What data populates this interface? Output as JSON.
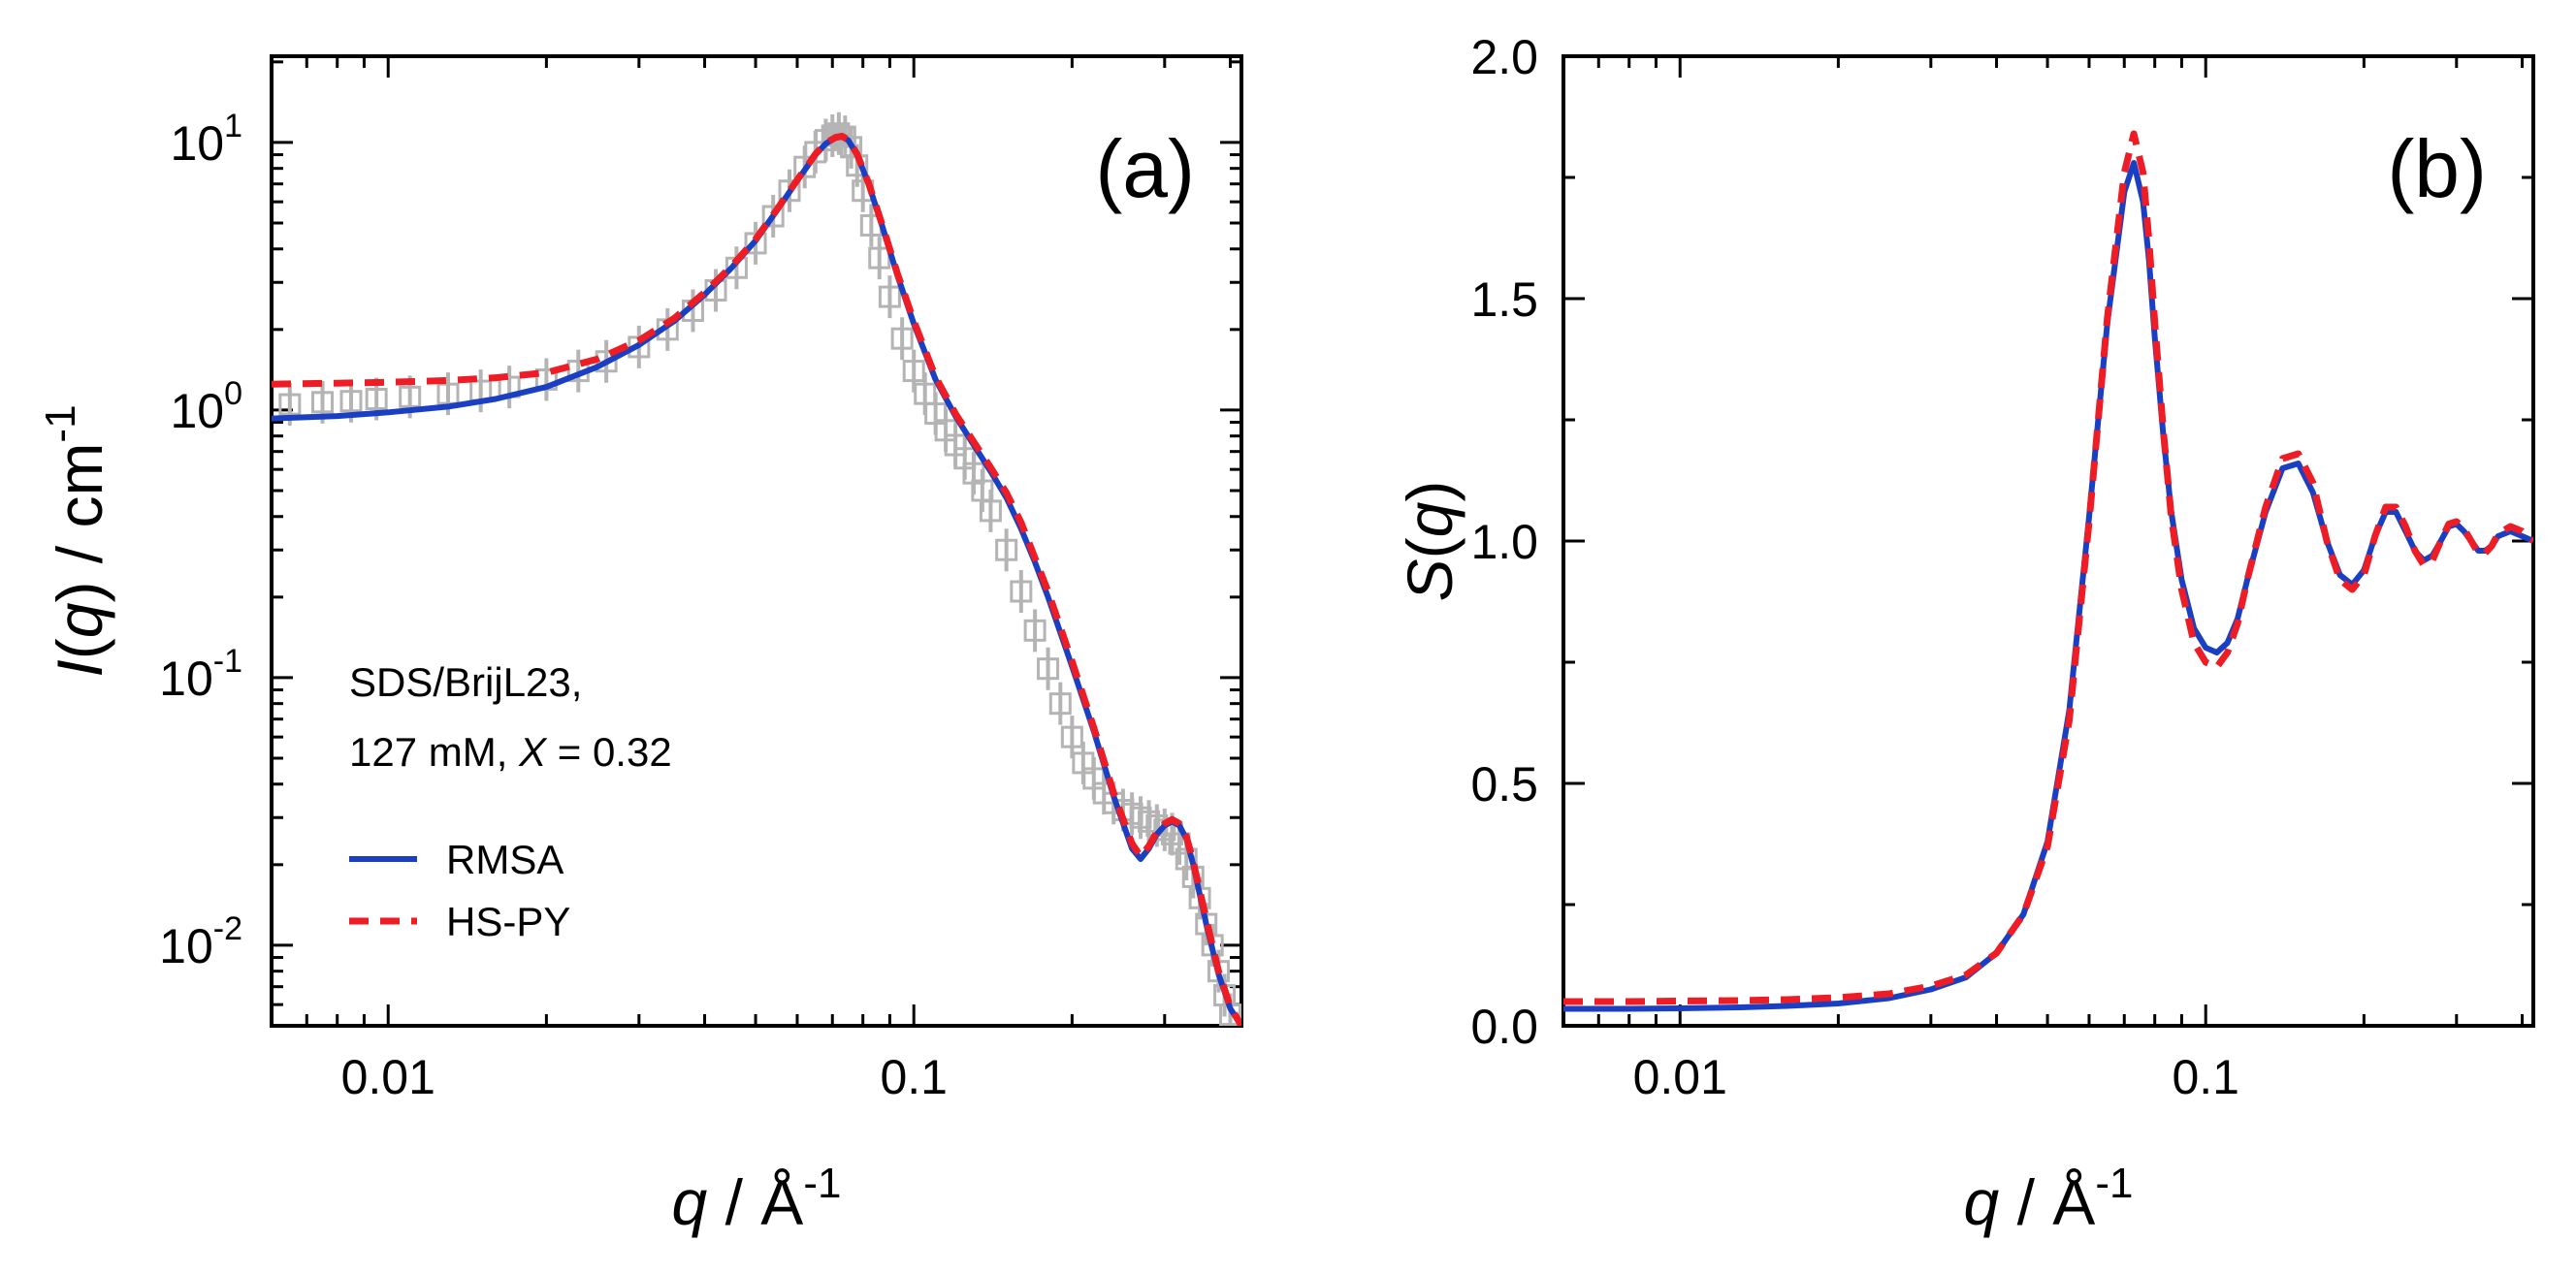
{
  "chart_data": [
    {
      "panel_label": "(a)",
      "type": "line",
      "x_scale": "log",
      "y_scale": "log",
      "xlim": [
        0.006,
        0.42
      ],
      "ylim": [
        0.005,
        21
      ],
      "xlabel": {
        "italic": "q",
        "plain": " / Å",
        "sup": "-1"
      },
      "ylabel": {
        "italic": "I",
        "plain1": "(",
        "italic2": "q",
        "plain2": ") / cm",
        "sup": "-1"
      },
      "x_ticks": [
        {
          "value": 0.01,
          "label": "0.01"
        },
        {
          "value": 0.1,
          "label": "0.1"
        }
      ],
      "y_ticks": [
        {
          "value": 10,
          "base": "10",
          "exp": "1"
        },
        {
          "value": 1,
          "base": "10",
          "exp": "0"
        },
        {
          "value": 0.1,
          "base": "10",
          "exp": "-1"
        },
        {
          "value": 0.01,
          "base": "10",
          "exp": "-2"
        }
      ],
      "annotation": {
        "line1": "SDS/BrijL23,",
        "line2_prefix": "127 mM, ",
        "line2_italic": "X",
        "line2_suffix": " = 0.32"
      },
      "legend": [
        {
          "name": "RMSA",
          "color": "#1a3fc2",
          "style": "solid"
        },
        {
          "name": "HS-PY",
          "color": "#ee1c24",
          "style": "dashed"
        }
      ],
      "series": [
        {
          "name": "Experimental data",
          "color": "#b4b4b4",
          "marker": "open-square",
          "x": [
            0.0065,
            0.0075,
            0.0085,
            0.0095,
            0.011,
            0.013,
            0.015,
            0.017,
            0.02,
            0.023,
            0.026,
            0.03,
            0.034,
            0.038,
            0.042,
            0.046,
            0.05,
            0.054,
            0.058,
            0.062,
            0.065,
            0.068,
            0.07,
            0.072,
            0.074,
            0.076,
            0.078,
            0.08,
            0.083,
            0.086,
            0.09,
            0.095,
            0.1,
            0.105,
            0.11,
            0.115,
            0.12,
            0.125,
            0.13,
            0.135,
            0.14,
            0.15,
            0.16,
            0.17,
            0.18,
            0.19,
            0.2,
            0.21,
            0.22,
            0.23,
            0.24,
            0.25,
            0.26,
            0.27,
            0.28,
            0.29,
            0.3,
            0.31,
            0.32,
            0.33,
            0.34,
            0.35,
            0.36,
            0.37,
            0.38,
            0.39,
            0.4
          ],
          "y": [
            1.05,
            1.07,
            1.08,
            1.1,
            1.12,
            1.15,
            1.18,
            1.22,
            1.3,
            1.4,
            1.52,
            1.72,
            2.0,
            2.35,
            2.8,
            3.4,
            4.2,
            5.3,
            6.6,
            8.1,
            9.2,
            10.2,
            10.6,
            10.8,
            10.5,
            9.6,
            8.2,
            6.6,
            4.9,
            3.7,
            2.65,
            1.85,
            1.4,
            1.15,
            0.97,
            0.84,
            0.74,
            0.66,
            0.58,
            0.5,
            0.42,
            0.3,
            0.21,
            0.15,
            0.108,
            0.08,
            0.06,
            0.048,
            0.042,
            0.037,
            0.034,
            0.032,
            0.031,
            0.03,
            0.029,
            0.028,
            0.027,
            0.026,
            0.024,
            0.021,
            0.018,
            0.015,
            0.012,
            0.01,
            0.008,
            0.0065,
            0.0055
          ]
        },
        {
          "name": "RMSA",
          "color": "#1a3fc2",
          "style": "solid",
          "x": [
            0.006,
            0.008,
            0.01,
            0.013,
            0.016,
            0.02,
            0.025,
            0.03,
            0.035,
            0.04,
            0.045,
            0.05,
            0.055,
            0.06,
            0.065,
            0.068,
            0.071,
            0.073,
            0.075,
            0.078,
            0.082,
            0.087,
            0.093,
            0.1,
            0.11,
            0.12,
            0.13,
            0.14,
            0.15,
            0.16,
            0.17,
            0.18,
            0.2,
            0.22,
            0.24,
            0.26,
            0.27,
            0.28,
            0.29,
            0.3,
            0.31,
            0.32,
            0.33,
            0.34,
            0.36,
            0.38,
            0.4,
            0.42
          ],
          "y": [
            0.93,
            0.95,
            0.98,
            1.03,
            1.1,
            1.22,
            1.45,
            1.75,
            2.15,
            2.7,
            3.4,
            4.3,
            5.6,
            7.2,
            9.0,
            9.9,
            10.4,
            10.5,
            10.2,
            9.0,
            7.0,
            4.9,
            3.2,
            2.1,
            1.3,
            0.95,
            0.74,
            0.59,
            0.47,
            0.36,
            0.27,
            0.2,
            0.11,
            0.063,
            0.036,
            0.023,
            0.021,
            0.023,
            0.026,
            0.028,
            0.029,
            0.028,
            0.025,
            0.02,
            0.012,
            0.0078,
            0.0058,
            0.005
          ]
        },
        {
          "name": "HS-PY",
          "color": "#ee1c24",
          "style": "dashed",
          "x": [
            0.006,
            0.008,
            0.01,
            0.013,
            0.016,
            0.02,
            0.025,
            0.03,
            0.035,
            0.04,
            0.045,
            0.05,
            0.055,
            0.06,
            0.065,
            0.068,
            0.071,
            0.073,
            0.075,
            0.078,
            0.082,
            0.087,
            0.093,
            0.1,
            0.11,
            0.12,
            0.13,
            0.14,
            0.15,
            0.16,
            0.17,
            0.18,
            0.2,
            0.22,
            0.24,
            0.26,
            0.27,
            0.28,
            0.29,
            0.3,
            0.31,
            0.32,
            0.33,
            0.34,
            0.36,
            0.38,
            0.4,
            0.42
          ],
          "y": [
            1.25,
            1.26,
            1.27,
            1.29,
            1.32,
            1.38,
            1.55,
            1.82,
            2.2,
            2.75,
            3.45,
            4.35,
            5.65,
            7.25,
            9.05,
            9.95,
            10.45,
            10.55,
            10.25,
            9.05,
            7.05,
            4.95,
            3.25,
            2.15,
            1.33,
            0.97,
            0.76,
            0.61,
            0.49,
            0.38,
            0.28,
            0.21,
            0.115,
            0.065,
            0.037,
            0.024,
            0.0215,
            0.0235,
            0.0265,
            0.0285,
            0.0295,
            0.0285,
            0.0255,
            0.0205,
            0.0125,
            0.008,
            0.0059,
            0.005
          ]
        }
      ]
    },
    {
      "panel_label": "(b)",
      "type": "line",
      "x_scale": "log",
      "y_scale": "linear",
      "xlim": [
        0.006,
        0.42
      ],
      "ylim": [
        0,
        2.0
      ],
      "xlabel": {
        "italic": "q",
        "plain": " / Å",
        "sup": "-1"
      },
      "ylabel": {
        "italic": "S",
        "plain1": "(",
        "italic2": "q",
        "plain2": ")",
        "sup": ""
      },
      "x_ticks": [
        {
          "value": 0.01,
          "label": "0.01"
        },
        {
          "value": 0.1,
          "label": "0.1"
        }
      ],
      "y_ticks": [
        {
          "value": 0.0,
          "label": "0.0"
        },
        {
          "value": 0.5,
          "label": "0.5"
        },
        {
          "value": 1.0,
          "label": "1.0"
        },
        {
          "value": 1.5,
          "label": "1.5"
        },
        {
          "value": 2.0,
          "label": "2.0"
        }
      ],
      "series": [
        {
          "name": "RMSA",
          "color": "#1a3fc2",
          "style": "solid",
          "x": [
            0.006,
            0.008,
            0.01,
            0.013,
            0.016,
            0.02,
            0.025,
            0.03,
            0.035,
            0.04,
            0.045,
            0.05,
            0.055,
            0.06,
            0.065,
            0.07,
            0.073,
            0.076,
            0.078,
            0.08,
            0.083,
            0.086,
            0.09,
            0.095,
            0.1,
            0.105,
            0.11,
            0.115,
            0.12,
            0.13,
            0.14,
            0.15,
            0.16,
            0.17,
            0.18,
            0.19,
            0.2,
            0.21,
            0.22,
            0.23,
            0.24,
            0.25,
            0.26,
            0.27,
            0.28,
            0.29,
            0.3,
            0.31,
            0.32,
            0.33,
            0.34,
            0.35,
            0.36,
            0.38,
            0.4,
            0.42
          ],
          "y": [
            0.035,
            0.035,
            0.036,
            0.038,
            0.041,
            0.046,
            0.057,
            0.075,
            0.1,
            0.15,
            0.23,
            0.38,
            0.65,
            1.05,
            1.45,
            1.72,
            1.78,
            1.7,
            1.58,
            1.42,
            1.22,
            1.06,
            0.92,
            0.82,
            0.78,
            0.77,
            0.79,
            0.84,
            0.92,
            1.06,
            1.15,
            1.16,
            1.1,
            1.0,
            0.93,
            0.91,
            0.94,
            1.01,
            1.06,
            1.06,
            1.02,
            0.98,
            0.96,
            0.97,
            1.0,
            1.03,
            1.035,
            1.02,
            1.0,
            0.98,
            0.98,
            0.99,
            1.01,
            1.02,
            1.01,
            1.0
          ]
        },
        {
          "name": "HS-PY",
          "color": "#ee1c24",
          "style": "dashed",
          "x": [
            0.006,
            0.008,
            0.01,
            0.013,
            0.016,
            0.02,
            0.025,
            0.03,
            0.035,
            0.04,
            0.045,
            0.05,
            0.055,
            0.06,
            0.065,
            0.07,
            0.073,
            0.076,
            0.078,
            0.08,
            0.083,
            0.086,
            0.09,
            0.095,
            0.1,
            0.105,
            0.11,
            0.115,
            0.12,
            0.13,
            0.14,
            0.15,
            0.16,
            0.17,
            0.18,
            0.19,
            0.2,
            0.21,
            0.22,
            0.23,
            0.24,
            0.25,
            0.26,
            0.27,
            0.28,
            0.29,
            0.3,
            0.31,
            0.32,
            0.33,
            0.34,
            0.35,
            0.36,
            0.38,
            0.4,
            0.42
          ],
          "y": [
            0.05,
            0.05,
            0.051,
            0.052,
            0.054,
            0.058,
            0.066,
            0.082,
            0.105,
            0.15,
            0.23,
            0.37,
            0.63,
            1.04,
            1.46,
            1.76,
            1.84,
            1.76,
            1.62,
            1.45,
            1.23,
            1.05,
            0.9,
            0.79,
            0.75,
            0.74,
            0.77,
            0.83,
            0.92,
            1.07,
            1.17,
            1.18,
            1.12,
            1.0,
            0.92,
            0.9,
            0.93,
            1.01,
            1.07,
            1.07,
            1.03,
            0.98,
            0.95,
            0.96,
            1.0,
            1.035,
            1.04,
            1.025,
            1.0,
            0.975,
            0.975,
            0.99,
            1.015,
            1.03,
            1.02,
            1.0
          ]
        }
      ]
    }
  ]
}
